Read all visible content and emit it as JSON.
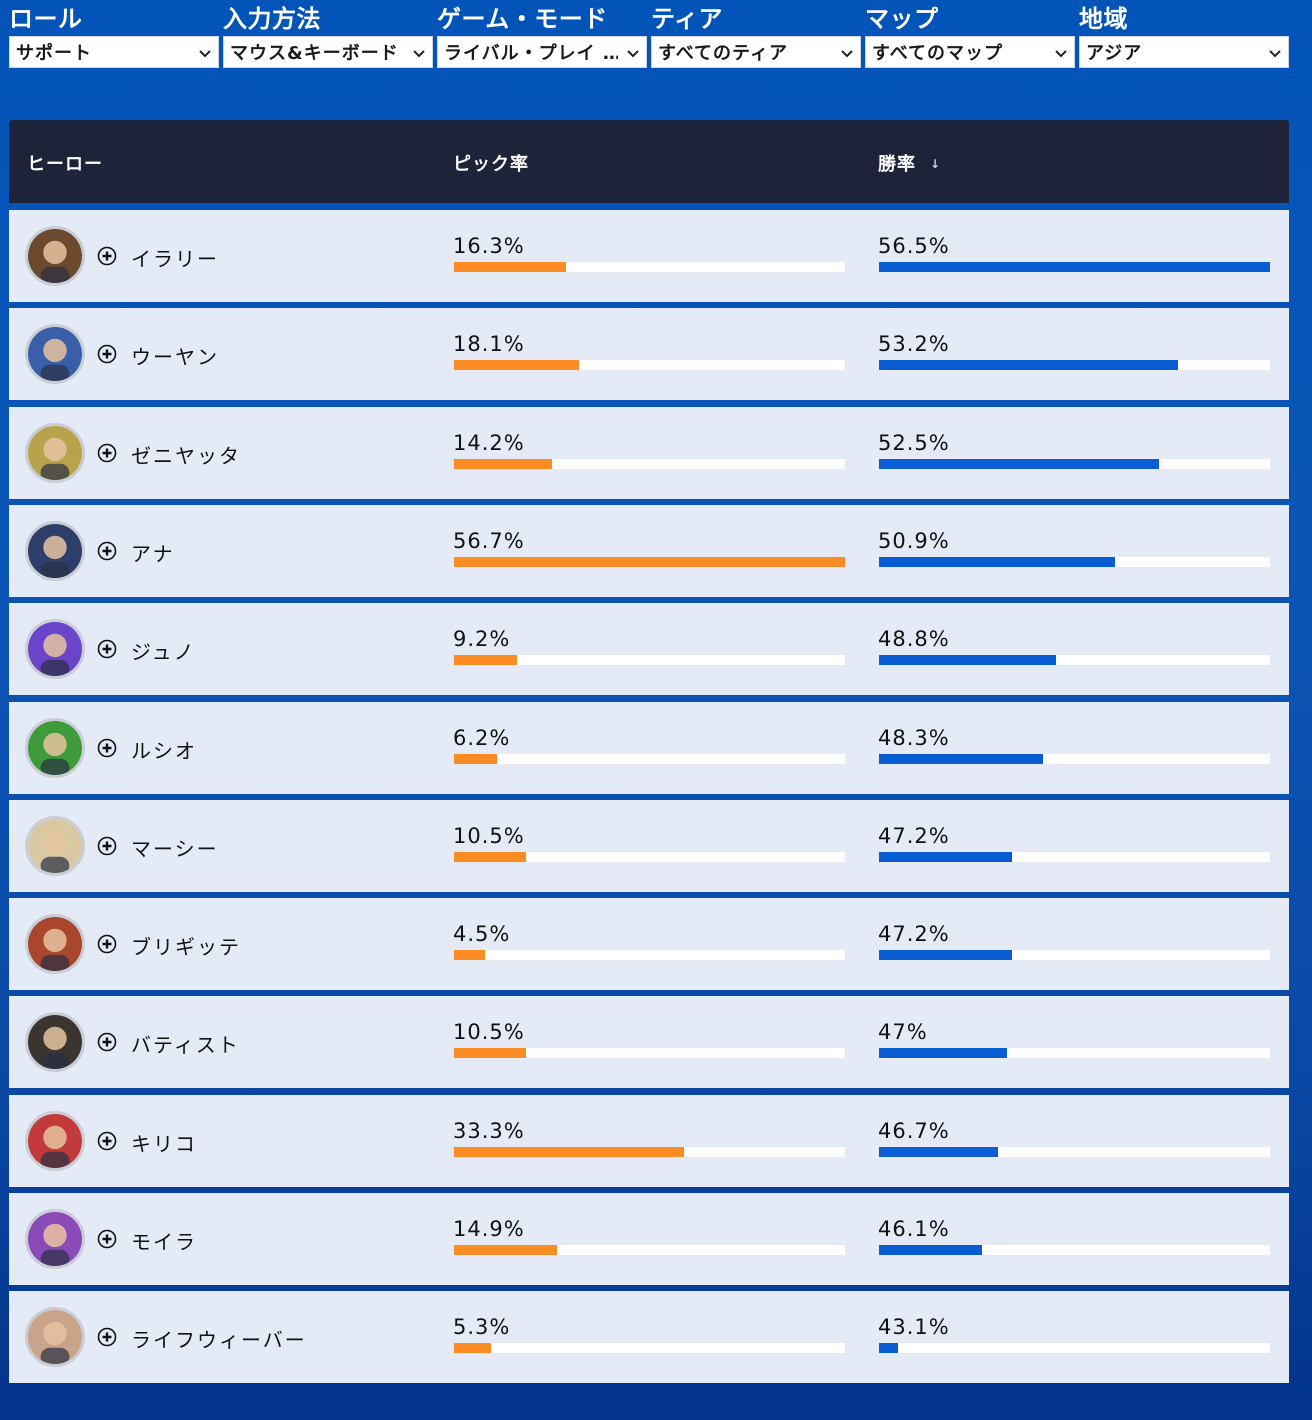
{
  "filters": [
    {
      "label": "ロール",
      "value": "サポート"
    },
    {
      "label": "入力方法",
      "value": "マウス&キーボード"
    },
    {
      "label": "ゲーム・モード",
      "value": "ライバル・プレイ …"
    },
    {
      "label": "ティア",
      "value": "すべてのティア"
    },
    {
      "label": "マップ",
      "value": "すべてのマップ"
    },
    {
      "label": "地域",
      "value": "アジア"
    }
  ],
  "table": {
    "headers": {
      "hero": "ヒーロー",
      "pick_rate": "ピック率",
      "win_rate": "勝率"
    },
    "sort_icon": "↓",
    "rows": [
      {
        "name": "イラリー",
        "pick": "16.3%",
        "pick_value": 16.3,
        "win": "56.5%",
        "win_value": 56.5,
        "color": "#6b4a2e"
      },
      {
        "name": "ウーヤン",
        "pick": "18.1%",
        "pick_value": 18.1,
        "win": "53.2%",
        "win_value": 53.2,
        "color": "#3a5fa8"
      },
      {
        "name": "ゼニヤッタ",
        "pick": "14.2%",
        "pick_value": 14.2,
        "win": "52.5%",
        "win_value": 52.5,
        "color": "#b8a24a"
      },
      {
        "name": "アナ",
        "pick": "56.7%",
        "pick_value": 56.7,
        "win": "50.9%",
        "win_value": 50.9,
        "color": "#2e3e6a"
      },
      {
        "name": "ジュノ",
        "pick": "9.2%",
        "pick_value": 9.2,
        "win": "48.8%",
        "win_value": 48.8,
        "color": "#6a44c9"
      },
      {
        "name": "ルシオ",
        "pick": "6.2%",
        "pick_value": 6.2,
        "win": "48.3%",
        "win_value": 48.3,
        "color": "#3f9b3a"
      },
      {
        "name": "マーシー",
        "pick": "10.5%",
        "pick_value": 10.5,
        "win": "47.2%",
        "win_value": 47.2,
        "color": "#d8c9a2"
      },
      {
        "name": "ブリギッテ",
        "pick": "4.5%",
        "pick_value": 4.5,
        "win": "47.2%",
        "win_value": 47.2,
        "color": "#a8472e"
      },
      {
        "name": "バティスト",
        "pick": "10.5%",
        "pick_value": 10.5,
        "win": "47%",
        "win_value": 47.0,
        "color": "#3b3530"
      },
      {
        "name": "キリコ",
        "pick": "33.3%",
        "pick_value": 33.3,
        "win": "46.7%",
        "win_value": 46.7,
        "color": "#c23a3a"
      },
      {
        "name": "モイラ",
        "pick": "14.9%",
        "pick_value": 14.9,
        "win": "46.1%",
        "win_value": 46.1,
        "color": "#8a4ab8"
      },
      {
        "name": "ライフウィーバー",
        "pick": "5.3%",
        "pick_value": 5.3,
        "win": "43.1%",
        "win_value": 43.1,
        "color": "#caa48a"
      }
    ],
    "scale": {
      "pick_max": 56.7,
      "win_min": 42.4,
      "win_max": 56.5
    }
  },
  "colors": {
    "pick_bar": "#fb8c23",
    "win_bar": "#0a5cd2",
    "header_bg": "#1d2338",
    "row_bg": "#e4ebf6"
  }
}
